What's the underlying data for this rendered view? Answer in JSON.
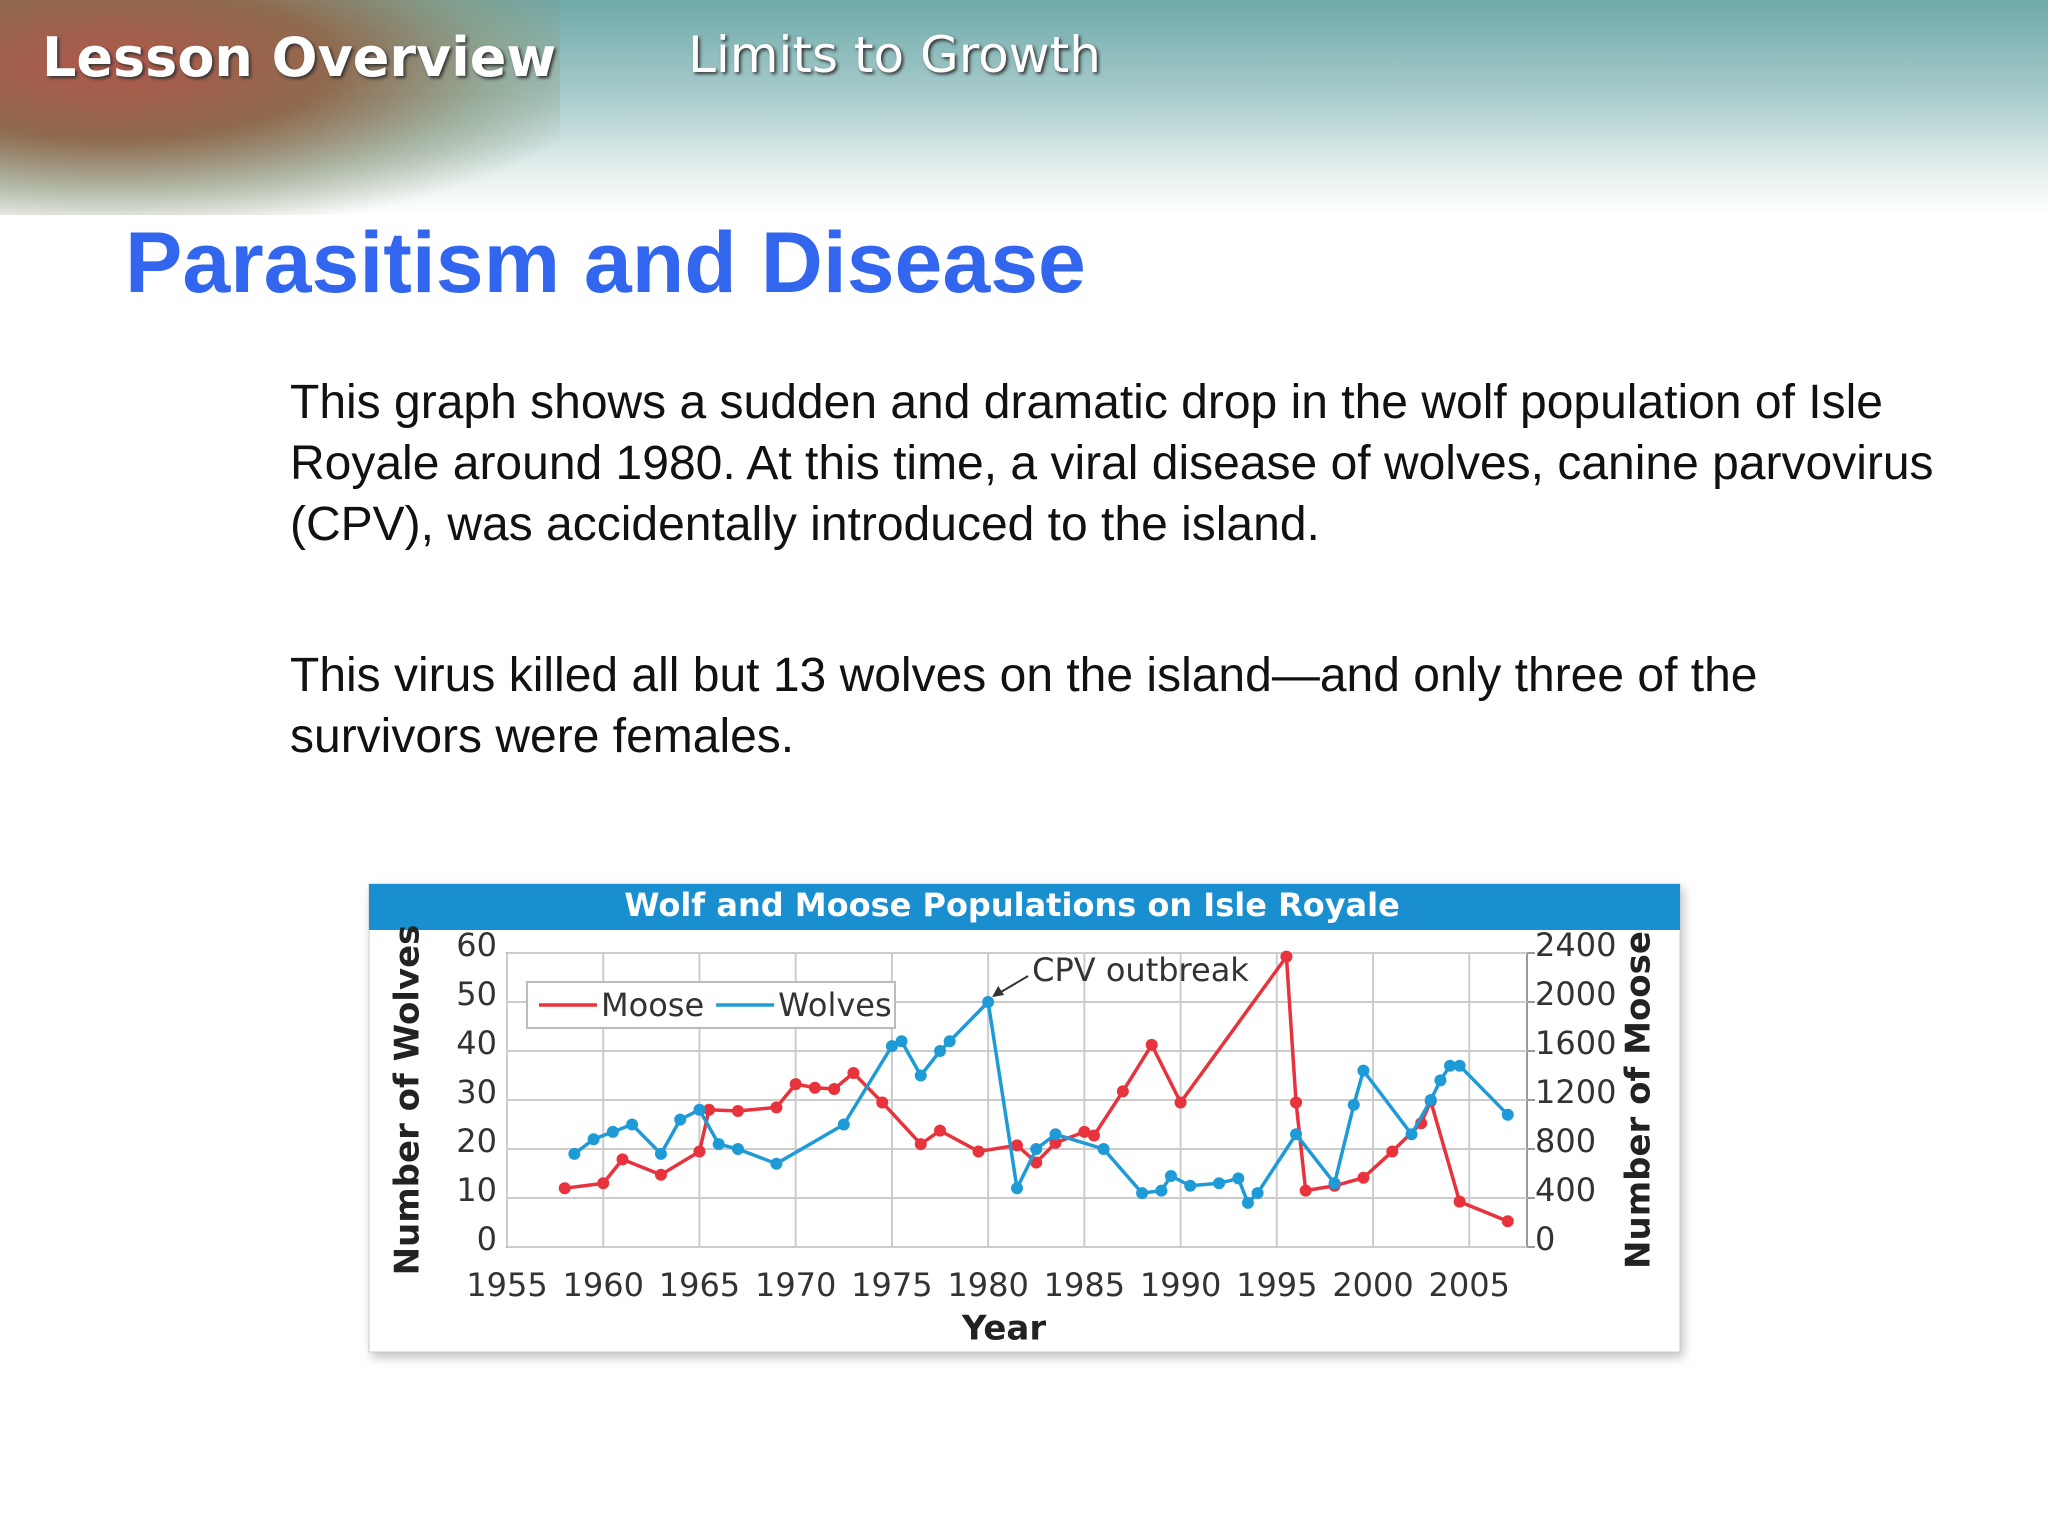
{
  "header": {
    "section": "Lesson Overview",
    "topic": "Limits to Growth"
  },
  "title": "Parasitism and Disease",
  "paragraphs": [
    "This graph shows a sudden and dramatic drop in the wolf population of Isle Royale around 1980. At this time, a viral disease of wolves, canine parvovirus (CPV), was accidentally introduced to the island.",
    "This virus killed all but 13 wolves on the island—and only three of the survivors were females."
  ],
  "chart_data": {
    "type": "line",
    "title": "Wolf and  Moose Populations on Isle Royale",
    "xlabel": "Year",
    "ylabel": "Number of Wolves",
    "y2label": "Number of Moose",
    "annotation": "CPV outbreak",
    "xlim": [
      1955,
      2008
    ],
    "xticks": [
      1955,
      1960,
      1965,
      1970,
      1975,
      1980,
      1985,
      1990,
      1995,
      2000,
      2005
    ],
    "ylim": [
      0,
      60
    ],
    "yticks": [
      0,
      10,
      20,
      30,
      40,
      50,
      60
    ],
    "y2lim": [
      0,
      2400
    ],
    "y2ticks": [
      0,
      400,
      800,
      1200,
      1600,
      2000,
      2400
    ],
    "grid": true,
    "legend": "upper left",
    "series": [
      {
        "name": "Moose",
        "color": "#e8323c",
        "axis": "y2",
        "x": [
          1958,
          1960,
          1961,
          1963,
          1965,
          1965.5,
          1967,
          1969,
          1970,
          1971,
          1972,
          1973,
          1974.5,
          1976.5,
          1977.5,
          1979.5,
          1981.5,
          1982.5,
          1983.5,
          1985,
          1985.5,
          1987,
          1988.5,
          1990,
          1995.5,
          1996,
          1996.5,
          1998,
          1999.5,
          2001,
          2002.5,
          2003,
          2004.5,
          2007
        ],
        "values": [
          480,
          520,
          715,
          590,
          780,
          1120,
          1110,
          1140,
          1330,
          1300,
          1290,
          1420,
          1180,
          840,
          950,
          780,
          830,
          690,
          850,
          940,
          910,
          1270,
          1650,
          1180,
          2370,
          1180,
          460,
          500,
          565,
          780,
          1010,
          1190,
          370,
          210
        ]
      },
      {
        "name": "Wolves",
        "color": "#1e9bd7",
        "x": [
          1958.5,
          1959.5,
          1960.5,
          1961.5,
          1963,
          1964,
          1965,
          1966,
          1967,
          1969,
          1972.5,
          1975,
          1975.5,
          1976.5,
          1977.5,
          1978,
          1980,
          1981.5,
          1982.5,
          1983.5,
          1986,
          1988,
          1989,
          1989.5,
          1990.5,
          1992,
          1993,
          1993.5,
          1994,
          1996,
          1998,
          1999,
          1999.5,
          2002,
          2003,
          2003.5,
          2004,
          2004.5,
          2007
        ],
        "values": [
          19,
          22,
          23.5,
          25,
          19,
          26,
          28,
          21,
          20,
          17,
          25,
          41,
          42,
          35,
          40,
          42,
          50,
          12,
          20,
          23,
          20,
          11,
          11.5,
          14.5,
          12.5,
          13,
          14,
          9,
          11,
          23,
          13,
          29,
          36,
          23,
          30,
          34,
          37,
          37,
          27
        ]
      }
    ]
  }
}
